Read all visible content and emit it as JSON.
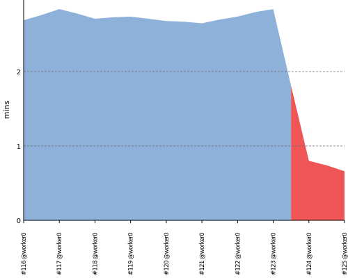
{
  "chart_data": {
    "type": "area",
    "ylabel": "mins",
    "xlabel": "",
    "ylim": [
      0,
      3
    ],
    "y_ticks": [
      "0",
      "1",
      "2"
    ],
    "grid": "dashed horizontal lines at y ticks",
    "categories": [
      "#116 @worker0",
      "#117 @worker0",
      "#118 @worker0",
      "#119 @worker0",
      "#120 @worker0",
      "#121 @worker0",
      "#122 @worker0",
      "#123 @worker0",
      "#124 @worker0",
      "#125 @worker0"
    ],
    "points": [
      {
        "x": 0,
        "y": 2.69
      },
      {
        "x": 0.5,
        "y": 2.76
      },
      {
        "x": 1,
        "y": 2.84
      },
      {
        "x": 1.5,
        "y": 2.78
      },
      {
        "x": 2,
        "y": 2.71
      },
      {
        "x": 2.5,
        "y": 2.73
      },
      {
        "x": 3,
        "y": 2.74
      },
      {
        "x": 3.5,
        "y": 2.71
      },
      {
        "x": 4,
        "y": 2.68
      },
      {
        "x": 4.5,
        "y": 2.67
      },
      {
        "x": 5,
        "y": 2.65
      },
      {
        "x": 5.5,
        "y": 2.7
      },
      {
        "x": 6,
        "y": 2.74
      },
      {
        "x": 6.5,
        "y": 2.8
      },
      {
        "x": 7,
        "y": 2.84
      },
      {
        "x": 7.5,
        "y": 1.81
      },
      {
        "x": 8,
        "y": 0.8
      },
      {
        "x": 8.5,
        "y": 0.74
      },
      {
        "x": 9,
        "y": 0.66
      }
    ],
    "regions": [
      {
        "from": 0,
        "to": 7.5,
        "color": "#8eb1da",
        "status": "success"
      },
      {
        "from": 7.5,
        "to": 9,
        "color": "#f05556",
        "status": "failure"
      }
    ]
  }
}
